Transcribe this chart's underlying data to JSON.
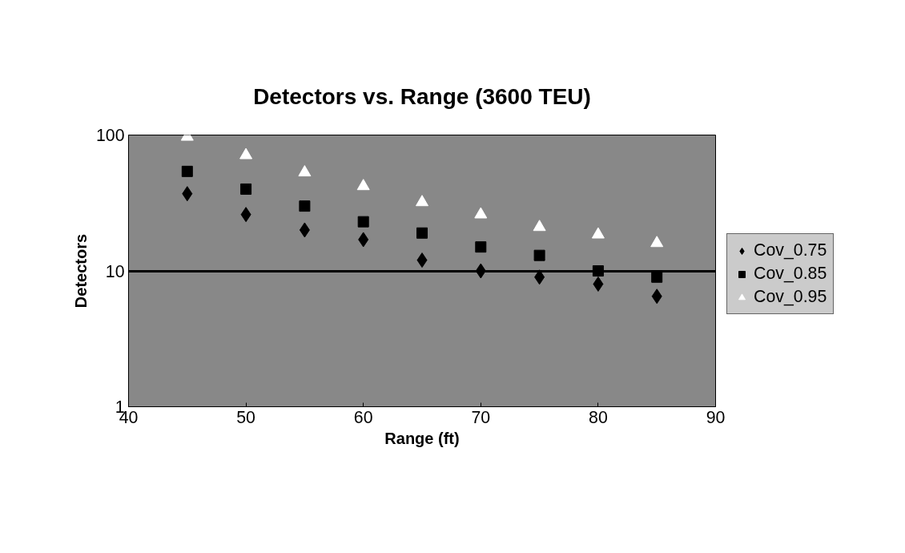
{
  "chart_data": {
    "type": "scatter",
    "title": "Detectors vs. Range (3600 TEU)",
    "xlabel": "Range (ft)",
    "ylabel": "Detectors",
    "x": [
      45,
      50,
      55,
      60,
      65,
      70,
      75,
      80,
      85
    ],
    "series": [
      {
        "name": "Cov_0.75",
        "color": "#000000",
        "marker": "diamond",
        "values": [
          37,
          26,
          20,
          17,
          12,
          10,
          9,
          8,
          6.5
        ]
      },
      {
        "name": "Cov_0.85",
        "color": "#000000",
        "marker": "square",
        "values": [
          54,
          40,
          30,
          23,
          19,
          15,
          13,
          10,
          9
        ]
      },
      {
        "name": "Cov_0.95",
        "color": "#ffffff",
        "marker": "triangle",
        "values": [
          97,
          71,
          53,
          42,
          32,
          26,
          21,
          18.5,
          16
        ]
      }
    ],
    "xlim": [
      40,
      90
    ],
    "xticks": [
      40,
      50,
      60,
      70,
      80,
      90
    ],
    "ylim": [
      1,
      100
    ],
    "yticks": [
      1,
      10,
      100
    ],
    "log": true,
    "grid": "y",
    "legend": "right"
  }
}
